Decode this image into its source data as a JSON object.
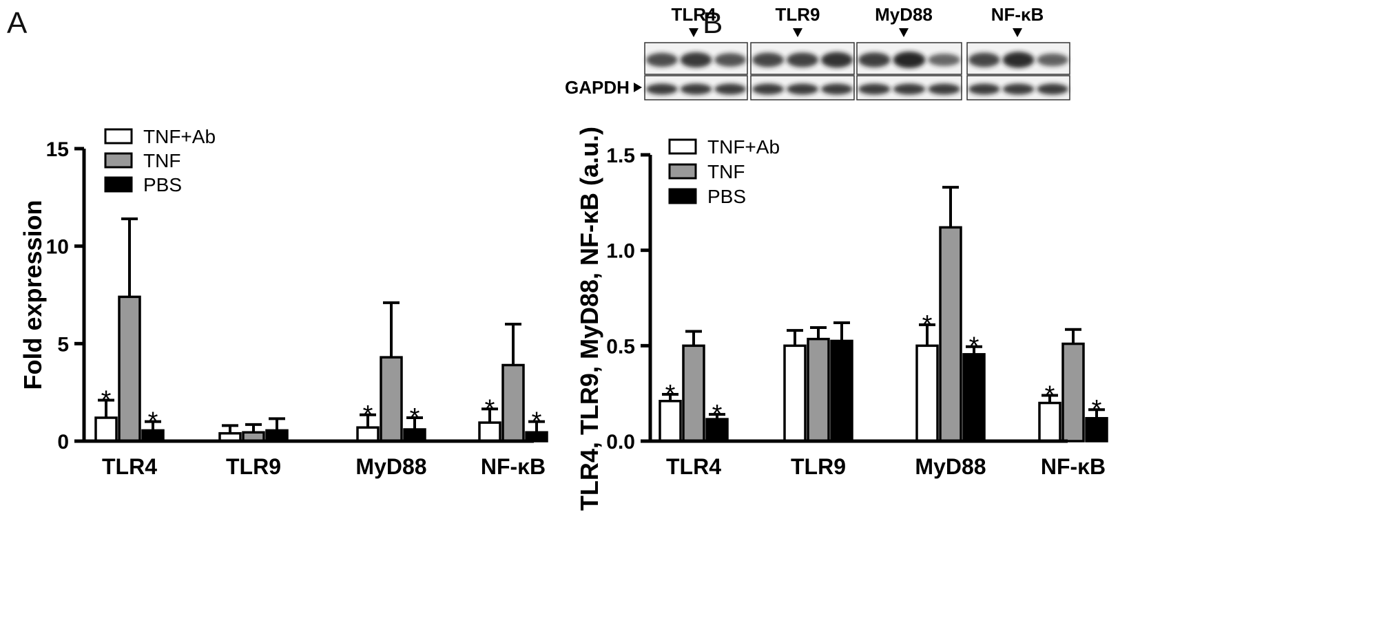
{
  "colors": {
    "TNF+Ab": "#ffffff",
    "TNF": "#999999",
    "PBS": "#000000"
  },
  "panels": {
    "A": {
      "letter": "A"
    },
    "B": {
      "letter": "B",
      "blot": {
        "proteins": [
          "TLR4",
          "TLR9",
          "MyD88",
          "NF-κB"
        ],
        "loading_control": "GAPDH",
        "top_band_intensity": [
          [
            0.7,
            0.85,
            0.65
          ],
          [
            0.75,
            0.78,
            0.9
          ],
          [
            0.8,
            1.0,
            0.5
          ],
          [
            0.75,
            0.95,
            0.55
          ]
        ]
      }
    }
  },
  "chart_data": [
    {
      "type": "bar",
      "panel": "A",
      "categories": [
        "TLR4",
        "TLR9",
        "MyD88",
        "NF-κB"
      ],
      "series": [
        {
          "name": "TNF+Ab",
          "values": [
            1.2,
            0.4,
            0.7,
            0.95
          ],
          "errors": [
            0.9,
            0.4,
            0.65,
            0.7
          ],
          "significant": [
            true,
            false,
            true,
            true
          ]
        },
        {
          "name": "TNF",
          "values": [
            7.4,
            0.45,
            4.3,
            3.9
          ],
          "errors": [
            4.0,
            0.4,
            2.8,
            2.1
          ],
          "significant": [
            false,
            false,
            false,
            false
          ]
        },
        {
          "name": "PBS",
          "values": [
            0.55,
            0.55,
            0.6,
            0.45
          ],
          "errors": [
            0.45,
            0.6,
            0.6,
            0.55
          ],
          "significant": [
            true,
            false,
            true,
            true
          ]
        }
      ],
      "ylabel": "Fold expression",
      "ylim": [
        0,
        15
      ],
      "yticks": [
        0,
        5,
        10,
        15
      ],
      "ytick_labels": [
        "0",
        "5",
        "10",
        "15"
      ],
      "significance_mark": "*",
      "legend": "top-left"
    },
    {
      "type": "bar",
      "panel": "B",
      "categories": [
        "TLR4",
        "TLR9",
        "MyD88",
        "NF-κB"
      ],
      "series": [
        {
          "name": "TNF+Ab",
          "values": [
            0.21,
            0.5,
            0.5,
            0.2
          ],
          "errors": [
            0.035,
            0.08,
            0.11,
            0.04
          ],
          "significant": [
            true,
            false,
            true,
            true
          ]
        },
        {
          "name": "TNF",
          "values": [
            0.5,
            0.535,
            1.12,
            0.51
          ],
          "errors": [
            0.075,
            0.06,
            0.21,
            0.075
          ],
          "significant": [
            false,
            false,
            false,
            false
          ]
        },
        {
          "name": "PBS",
          "values": [
            0.115,
            0.525,
            0.455,
            0.12
          ],
          "errors": [
            0.025,
            0.095,
            0.04,
            0.045
          ],
          "significant": [
            true,
            false,
            true,
            true
          ]
        }
      ],
      "ylabel": "TLR4, TLR9, MyD88, NF-κB (a.u.)",
      "ylim": [
        0,
        1.5
      ],
      "yticks": [
        0,
        0.5,
        1.0,
        1.5
      ],
      "ytick_labels": [
        "0.0",
        "0.5",
        "1.0",
        "1.5"
      ],
      "significance_mark": "*",
      "legend": "top-left"
    }
  ]
}
